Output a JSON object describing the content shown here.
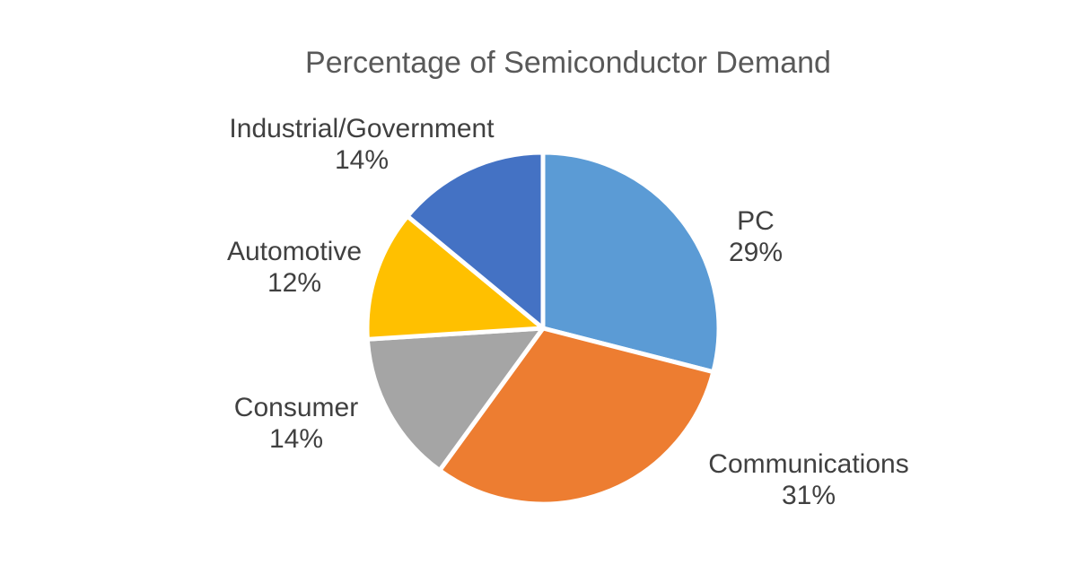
{
  "background_color": "#FFFFFF",
  "chart_data": {
    "type": "pie",
    "title": "Percentage of Semiconductor Demand",
    "legend": "none",
    "labels_position": "outside",
    "start_angle_deg": 0,
    "direction": "clockwise",
    "categories": [
      "PC",
      "Communications",
      "Consumer",
      "Automotive",
      "Industrial/Government"
    ],
    "values": [
      29,
      31,
      14,
      12,
      14
    ],
    "unit": "%",
    "slices": [
      {
        "label": "PC",
        "value": 29,
        "value_label": "29%",
        "color": "#5B9BD5"
      },
      {
        "label": "Communications",
        "value": 31,
        "value_label": "31%",
        "color": "#ED7D31"
      },
      {
        "label": "Consumer",
        "value": 14,
        "value_label": "14%",
        "color": "#A5A5A5"
      },
      {
        "label": "Automotive",
        "value": 12,
        "value_label": "12%",
        "color": "#FFC000"
      },
      {
        "label": "Industrial/Government",
        "value": 14,
        "value_label": "14%",
        "color": "#4472C4"
      }
    ],
    "colors": {
      "title_text": "#595959",
      "label_text": "#404040",
      "slice_border": "#FFFFFF"
    }
  }
}
